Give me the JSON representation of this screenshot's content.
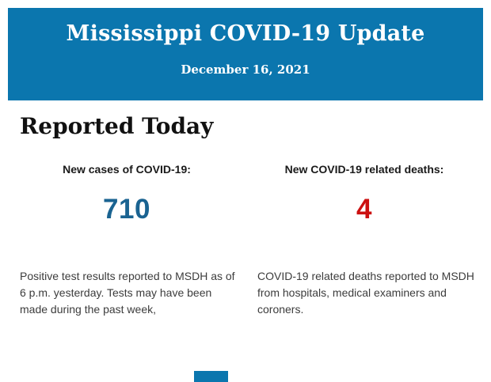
{
  "header": {
    "title": "Mississippi COVID-19 Update",
    "date": "December 16, 2021",
    "background_color": "#0b76ae",
    "text_color": "#ffffff"
  },
  "section": {
    "title": "Reported Today"
  },
  "stats": {
    "cases": {
      "label": "New cases of COVID-19:",
      "value": "710",
      "value_color": "#1a6391",
      "description": "Positive test results reported to MSDH as of 6 p.m. yesterday. Tests may have been made during the past week,"
    },
    "deaths": {
      "label": "New COVID-19 related deaths:",
      "value": "4",
      "value_color": "#cc1111",
      "description": "COVID-19 related deaths reported to MSDH from hospitals, medical examiners and coroners."
    }
  },
  "footer": {
    "cutoff_color": "#0b76ae"
  }
}
